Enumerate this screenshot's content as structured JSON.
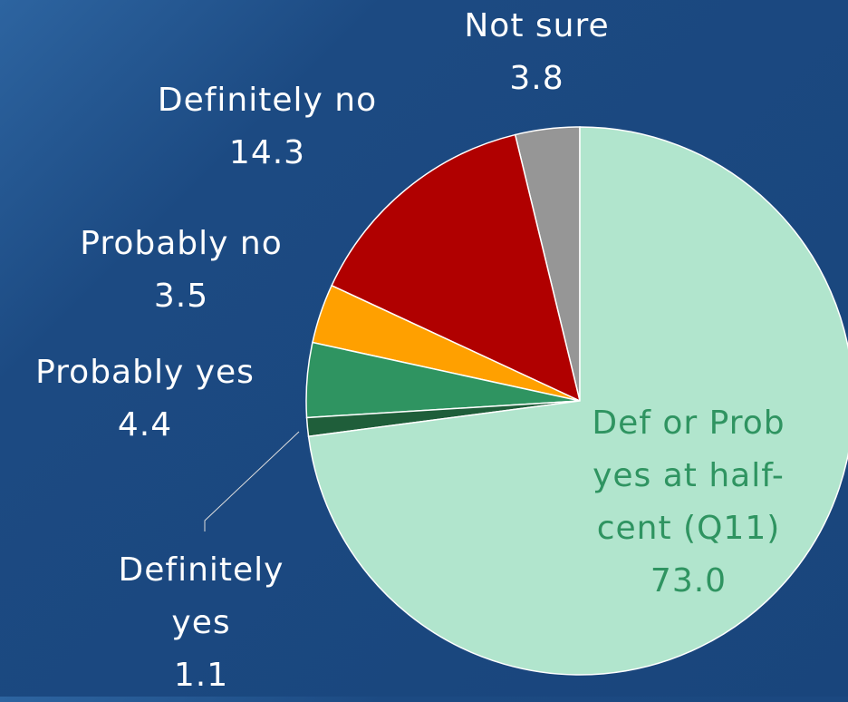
{
  "chart_data": {
    "type": "pie",
    "categories": [
      "Def or Prob yes at half-cent (Q11)",
      "Definitely yes",
      "Probably yes",
      "Probably no",
      "Definitely no",
      "Not sure"
    ],
    "values": [
      73.0,
      1.1,
      4.4,
      3.5,
      14.3,
      3.8
    ],
    "value_labels": [
      "73.0",
      "1.1",
      "4.4",
      "3.5",
      "14.3",
      "3.8"
    ],
    "colors": [
      "#b1e5cd",
      "#1f5e3a",
      "#2f9461",
      "#ffa000",
      "#b00000",
      "#969696"
    ]
  }
}
